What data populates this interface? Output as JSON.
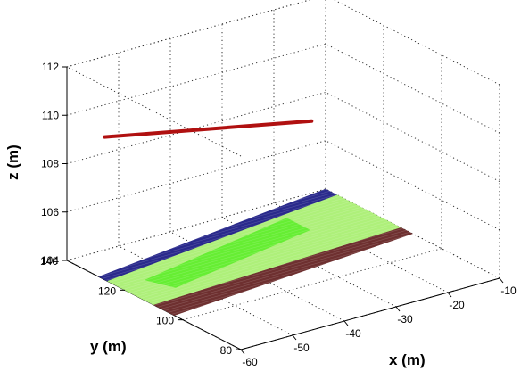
{
  "chart_data": {
    "type": "3d-surface-plot",
    "xlabel": "x (m)",
    "ylabel": "y (m)",
    "zlabel": "z (m)",
    "xlim": [
      -60,
      -10
    ],
    "ylim": [
      80,
      140
    ],
    "zlim": [
      104,
      112
    ],
    "x_ticks": [
      "-60",
      "-50",
      "-40",
      "-30",
      "-20",
      "-10"
    ],
    "y_ticks": [
      "80",
      "100",
      "120",
      "140"
    ],
    "z_ticks": [
      "104",
      "106",
      "108",
      "110",
      "112"
    ],
    "grid": true,
    "series": [
      {
        "kind": "line3d",
        "color": "#b01010",
        "points": [
          [
            -60,
            127,
            109.9
          ],
          [
            -20,
            127,
            108.2
          ]
        ]
      },
      {
        "kind": "surface",
        "color": "#2a2a8c",
        "z": 104,
        "polygon": [
          [
            -60,
            129
          ],
          [
            -10,
            140
          ],
          [
            -10,
            136
          ],
          [
            -60,
            126
          ]
        ]
      },
      {
        "kind": "surface",
        "color": "#aef07a",
        "z": 104,
        "polygon": [
          [
            -60,
            126
          ],
          [
            -10,
            136
          ],
          [
            -10,
            114
          ],
          [
            -60,
            110
          ]
        ]
      },
      {
        "kind": "surface",
        "color": "#66ee33",
        "z": 104,
        "polygon": [
          [
            -55,
            122
          ],
          [
            -22,
            132
          ],
          [
            -22,
            124
          ],
          [
            -53,
            115
          ]
        ]
      },
      {
        "kind": "surface",
        "color": "#6e3030",
        "z": 104,
        "polygon": [
          [
            -60,
            110
          ],
          [
            -10,
            114
          ],
          [
            -10,
            110
          ],
          [
            -60,
            103
          ]
        ]
      }
    ]
  }
}
